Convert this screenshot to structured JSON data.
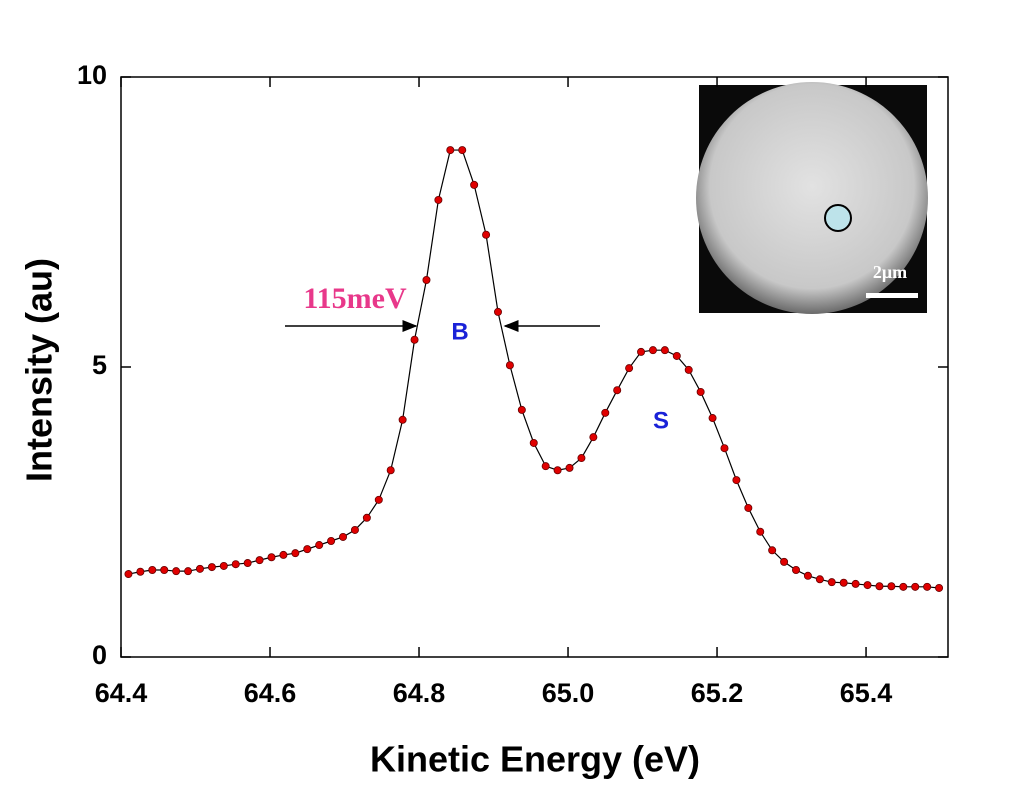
{
  "chart_data": {
    "type": "line",
    "x_label": "Kinetic Energy (eV)",
    "y_label": "Intensity (au)",
    "x": [
      64.41,
      64.426,
      64.442,
      64.458,
      64.474,
      64.49,
      64.506,
      64.522,
      64.538,
      64.554,
      64.57,
      64.586,
      64.602,
      64.618,
      64.634,
      64.65,
      64.666,
      64.682,
      64.698,
      64.714,
      64.73,
      64.746,
      64.762,
      64.778,
      64.794,
      64.81,
      64.826,
      64.842,
      64.858,
      64.874,
      64.89,
      64.906,
      64.922,
      64.938,
      64.954,
      64.97,
      64.986,
      65.002,
      65.018,
      65.034,
      65.05,
      65.066,
      65.082,
      65.098,
      65.114,
      65.13,
      65.146,
      65.162,
      65.178,
      65.194,
      65.21,
      65.226,
      65.242,
      65.258,
      65.274,
      65.29,
      65.306,
      65.322,
      65.338,
      65.354,
      65.37,
      65.386,
      65.402,
      65.418,
      65.434,
      65.45,
      65.466,
      65.482,
      65.498
    ],
    "series": [
      {
        "color": "#e00000",
        "line_color": "#000000",
        "values": [
          1.43,
          1.47,
          1.5,
          1.5,
          1.48,
          1.48,
          1.52,
          1.55,
          1.57,
          1.6,
          1.62,
          1.67,
          1.72,
          1.76,
          1.79,
          1.86,
          1.93,
          2.0,
          2.07,
          2.19,
          2.4,
          2.71,
          3.22,
          4.09,
          5.47,
          6.5,
          7.88,
          8.74,
          8.74,
          8.14,
          7.28,
          5.95,
          5.03,
          4.26,
          3.69,
          3.29,
          3.22,
          3.26,
          3.43,
          3.79,
          4.21,
          4.6,
          4.98,
          5.26,
          5.29,
          5.29,
          5.19,
          4.95,
          4.57,
          4.12,
          3.6,
          3.05,
          2.57,
          2.16,
          1.84,
          1.64,
          1.5,
          1.4,
          1.34,
          1.29,
          1.28,
          1.26,
          1.24,
          1.22,
          1.22,
          1.21,
          1.21,
          1.21,
          1.19
        ]
      }
    ],
    "xlim": [
      64.4,
      65.51
    ],
    "ylim": [
      0,
      10
    ],
    "xticks": [
      64.4,
      64.6,
      64.8,
      {
        "value": 65,
        "label": "65.0"
      },
      65.2,
      65.4
    ],
    "yticks": [
      0,
      5,
      10
    ],
    "annotations": [
      "115meV",
      "B",
      "S"
    ],
    "inset_scale_label": "2μm"
  }
}
